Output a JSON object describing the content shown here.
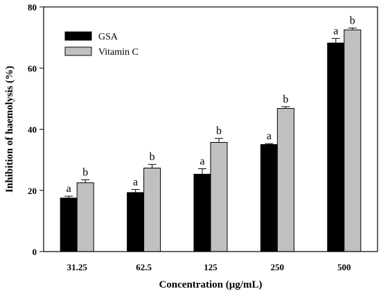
{
  "chart_data": {
    "type": "bar",
    "title": "",
    "xlabel": "Concentration (µg/mL)",
    "ylabel": "Inhibition of haemolysis (%)",
    "categories": [
      "31.25",
      "62.5",
      "125",
      "250",
      "500"
    ],
    "ylim": [
      0,
      80
    ],
    "yticks": [
      "0",
      "20",
      "40",
      "60",
      "80"
    ],
    "grid": false,
    "legend_position": "top-left",
    "series": [
      {
        "name": "GSA",
        "color": "#000000",
        "values": [
          17.5,
          19.3,
          25.3,
          35.0,
          68.2
        ],
        "errors": [
          0.6,
          1.0,
          1.8,
          0.3,
          1.5
        ],
        "labels": [
          "a",
          "a",
          "a",
          "a",
          "a"
        ]
      },
      {
        "name": "Vitamin C",
        "color": "#c0c0c0",
        "values": [
          22.5,
          27.3,
          35.7,
          46.8,
          72.5
        ],
        "errors": [
          1.0,
          1.2,
          1.3,
          0.6,
          0.6
        ],
        "labels": [
          "b",
          "b",
          "b",
          "b",
          "b"
        ]
      }
    ]
  }
}
